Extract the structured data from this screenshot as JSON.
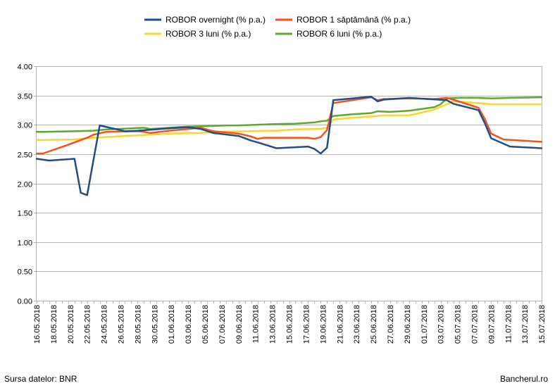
{
  "footer": {
    "source": "Sursa datelor: BNR",
    "brand": "Bancherul.ro"
  },
  "chart_data": {
    "type": "line",
    "title": "",
    "xlabel": "",
    "ylabel": "",
    "ylim": [
      0,
      4
    ],
    "y_ticks": [
      "0.00",
      "0.50",
      "1.00",
      "1.50",
      "2.00",
      "2.50",
      "3.00",
      "3.50",
      "4.00"
    ],
    "grid": true,
    "legend_position": "top",
    "x_tick_labels": [
      "16.05.2018",
      "18.05.2018",
      "20.05.2018",
      "22.05.2018",
      "24.05.2018",
      "26.05.2018",
      "28.05.2018",
      "30.05.2018",
      "01.06.2018",
      "03.06.2018",
      "05.06.2018",
      "07.06.2018",
      "09.06.2018",
      "11.06.2018",
      "13.06.2018",
      "15.06.2018",
      "17.06.2018",
      "19.06.2018",
      "21.06.2018",
      "23.06.2018",
      "25.06.2018",
      "27.06.2018",
      "29.06.2018",
      "01.07.2018",
      "03.07.2018",
      "05.07.2018",
      "07.07.2018",
      "09.07.2018",
      "11.07.2018",
      "13.07.2018",
      "15.07.2018"
    ],
    "series": [
      {
        "name": "ROBOR overnight (% p.a.)",
        "color": "#1F4E8C",
        "points": [
          [
            0,
            2.42
          ],
          [
            2,
            2.39
          ],
          [
            6,
            2.42
          ],
          [
            7,
            1.84
          ],
          [
            8,
            1.8
          ],
          [
            10,
            2.99
          ],
          [
            14,
            2.89
          ],
          [
            16,
            2.9
          ],
          [
            21,
            2.94
          ],
          [
            24,
            2.96
          ],
          [
            26,
            2.93
          ],
          [
            28,
            2.86
          ],
          [
            32,
            2.81
          ],
          [
            34,
            2.73
          ],
          [
            35,
            2.7
          ],
          [
            38,
            2.6
          ],
          [
            43,
            2.63
          ],
          [
            44,
            2.59
          ],
          [
            45,
            2.51
          ],
          [
            46,
            2.61
          ],
          [
            47,
            3.42
          ],
          [
            53,
            3.48
          ],
          [
            54,
            3.4
          ],
          [
            55,
            3.43
          ],
          [
            59,
            3.46
          ],
          [
            65,
            3.42
          ],
          [
            66,
            3.36
          ],
          [
            70,
            3.25
          ],
          [
            71,
            3.03
          ],
          [
            72,
            2.77
          ],
          [
            75,
            2.63
          ],
          [
            80,
            2.6
          ]
        ]
      },
      {
        "name": "ROBOR 1 săptămână (% p.a.)",
        "color": "#F4511E",
        "points": [
          [
            0,
            2.51
          ],
          [
            1,
            2.51
          ],
          [
            5,
            2.66
          ],
          [
            6,
            2.7
          ],
          [
            8,
            2.78
          ],
          [
            9,
            2.83
          ],
          [
            11,
            2.88
          ],
          [
            16,
            2.89
          ],
          [
            17,
            2.88
          ],
          [
            18,
            2.86
          ],
          [
            21,
            2.9
          ],
          [
            24,
            2.93
          ],
          [
            26,
            2.95
          ],
          [
            28,
            2.89
          ],
          [
            32,
            2.85
          ],
          [
            34,
            2.8
          ],
          [
            35,
            2.76
          ],
          [
            36,
            2.78
          ],
          [
            43,
            2.78
          ],
          [
            44,
            2.76
          ],
          [
            45,
            2.79
          ],
          [
            46,
            2.91
          ],
          [
            47,
            3.37
          ],
          [
            53,
            3.47
          ],
          [
            54,
            3.42
          ],
          [
            55,
            3.44
          ],
          [
            59,
            3.45
          ],
          [
            63,
            3.44
          ],
          [
            65,
            3.46
          ],
          [
            66,
            3.43
          ],
          [
            70,
            3.29
          ],
          [
            71,
            3.1
          ],
          [
            72,
            2.85
          ],
          [
            74,
            2.75
          ],
          [
            80,
            2.71
          ]
        ]
      },
      {
        "name": "ROBOR 3 luni (% p.a.)",
        "color": "#FFD42A",
        "points": [
          [
            0,
            2.74
          ],
          [
            6,
            2.75
          ],
          [
            9,
            2.78
          ],
          [
            16,
            2.82
          ],
          [
            21,
            2.85
          ],
          [
            26,
            2.86
          ],
          [
            28,
            2.88
          ],
          [
            33,
            2.89
          ],
          [
            38,
            2.9
          ],
          [
            41,
            2.92
          ],
          [
            44,
            2.93
          ],
          [
            45,
            2.93
          ],
          [
            46,
            2.95
          ],
          [
            47,
            3.09
          ],
          [
            50,
            3.12
          ],
          [
            55,
            3.16
          ],
          [
            59,
            3.16
          ],
          [
            63,
            3.26
          ],
          [
            66,
            3.4
          ],
          [
            69,
            3.38
          ],
          [
            72,
            3.35
          ],
          [
            80,
            3.35
          ]
        ]
      },
      {
        "name": "ROBOR 6 luni (% p.a.)",
        "color": "#5FA830",
        "points": [
          [
            0,
            2.88
          ],
          [
            1,
            2.88
          ],
          [
            6,
            2.89
          ],
          [
            9,
            2.9
          ],
          [
            11,
            2.92
          ],
          [
            13,
            2.93
          ],
          [
            17,
            2.95
          ],
          [
            18,
            2.93
          ],
          [
            24,
            2.97
          ],
          [
            28,
            2.98
          ],
          [
            30,
            2.99
          ],
          [
            32,
            2.99
          ],
          [
            37,
            3.01
          ],
          [
            41,
            3.02
          ],
          [
            44,
            3.04
          ],
          [
            45,
            3.06
          ],
          [
            46,
            3.07
          ],
          [
            47,
            3.15
          ],
          [
            50,
            3.18
          ],
          [
            53,
            3.2
          ],
          [
            54,
            3.23
          ],
          [
            56,
            3.22
          ],
          [
            59,
            3.24
          ],
          [
            61,
            3.27
          ],
          [
            63,
            3.3
          ],
          [
            64,
            3.35
          ],
          [
            65,
            3.45
          ],
          [
            67,
            3.46
          ],
          [
            70,
            3.46
          ],
          [
            72,
            3.45
          ],
          [
            75,
            3.46
          ],
          [
            80,
            3.47
          ]
        ]
      }
    ]
  }
}
